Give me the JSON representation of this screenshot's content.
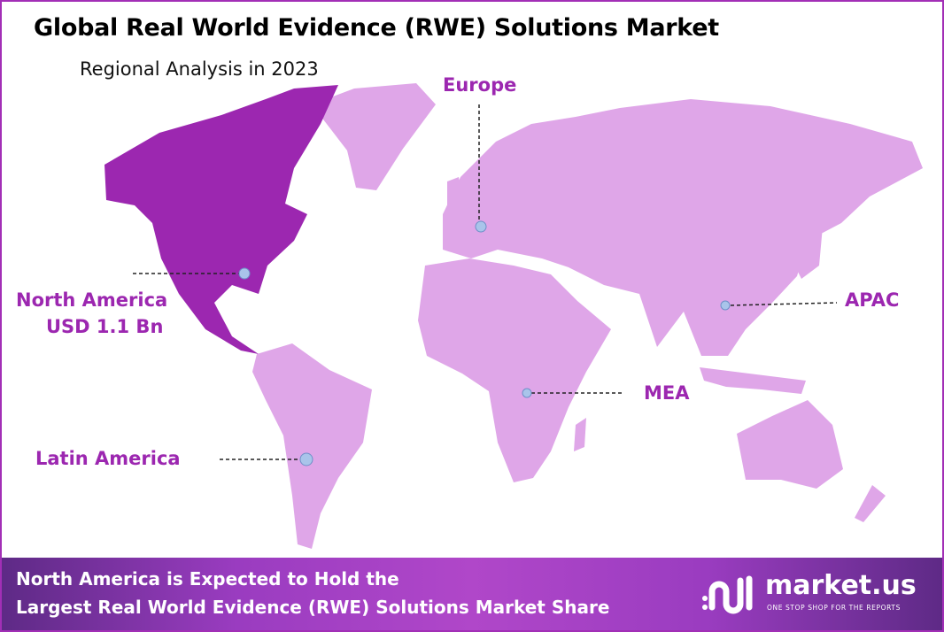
{
  "header": {
    "title": "Global Real World Evidence (RWE) Solutions Market",
    "subtitle": "Regional Analysis in 2023"
  },
  "colors": {
    "highlight": "#9c27b0",
    "region": "#dfa6e8",
    "marker": "#a9c4ea",
    "label": "#9c27b0"
  },
  "regions": {
    "north_america": {
      "name": "North America",
      "value": "USD 1.1 Bn",
      "highlighted": true
    },
    "europe": {
      "name": "Europe"
    },
    "apac": {
      "name": "APAC"
    },
    "mea": {
      "name": "MEA"
    },
    "latin_america": {
      "name": "Latin America"
    }
  },
  "footer": {
    "line1": "North America is Expected to Hold the",
    "line2": "Largest Real World Evidence (RWE) Solutions Market Share",
    "brand": "market.us",
    "tagline": "ONE STOP SHOP FOR THE REPORTS",
    "logo_icon": "market-us-logo"
  }
}
